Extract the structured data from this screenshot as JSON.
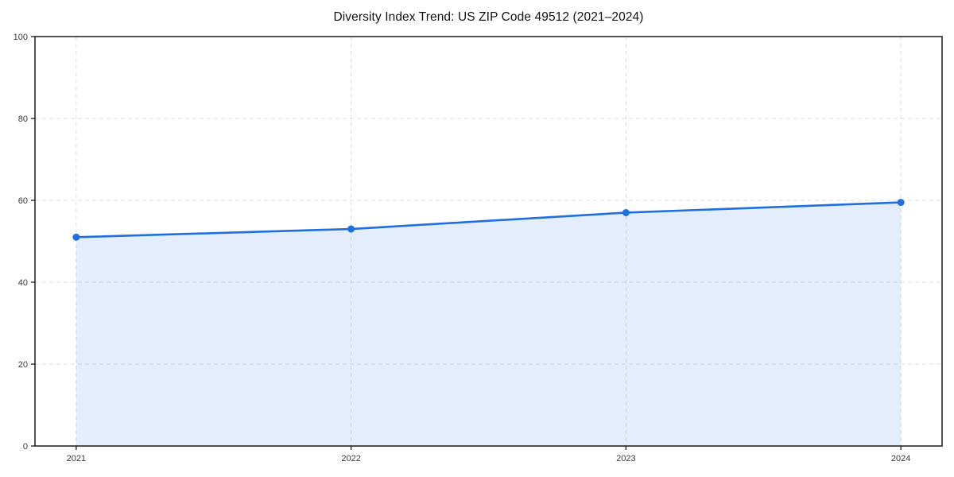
{
  "chart_data": {
    "type": "area",
    "title": "Diversity Index Trend: US ZIP Code 49512 (2021–2024)",
    "categories": [
      "2021",
      "2022",
      "2023",
      "2024"
    ],
    "series": [
      {
        "name": "Diversity Index",
        "values": [
          51,
          53,
          57,
          59.5
        ]
      }
    ],
    "xlabel": "",
    "ylabel": "",
    "ylim": [
      0,
      100
    ],
    "yticks": [
      0,
      20,
      40,
      60,
      80,
      100
    ],
    "grid": true,
    "grid_style": "dashed",
    "legend": "none",
    "marker": "circle",
    "colors": {
      "line": "#1f6fe0",
      "marker": "#1f6fe0",
      "area_fill": "#1f6fe0",
      "area_opacity": 0.12,
      "grid": "#dcdcdc",
      "spine": "#1a1a1a",
      "tick_label": "#3a3a3a",
      "title": "#111111",
      "background": "#ffffff"
    }
  }
}
